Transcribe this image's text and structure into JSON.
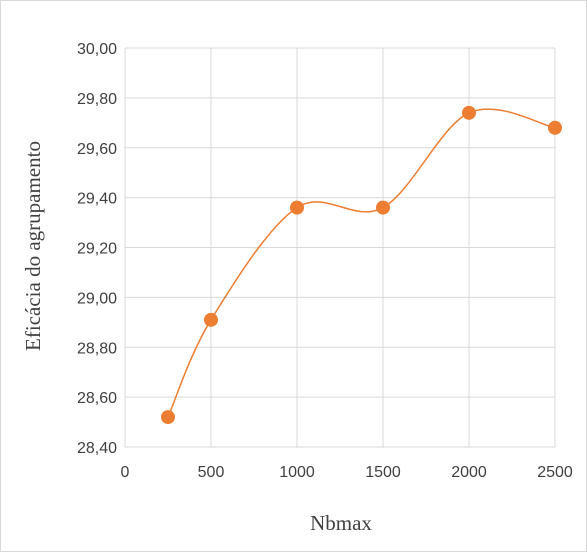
{
  "chart_data": {
    "type": "scatter",
    "title": "",
    "xlabel": "Nbmax",
    "ylabel": "Eficácia do agrupamento",
    "xlim": [
      0,
      2500
    ],
    "ylim": [
      28.4,
      30.0
    ],
    "x_ticks": [
      0,
      500,
      1000,
      1500,
      2000,
      2500
    ],
    "x_tick_labels": [
      "0",
      "500",
      "1000",
      "1500",
      "2000",
      "2500"
    ],
    "y_ticks": [
      28.4,
      28.6,
      28.8,
      29.0,
      29.2,
      29.4,
      29.6,
      29.8,
      30.0
    ],
    "y_tick_labels": [
      "28,40",
      "28,60",
      "28,80",
      "29,00",
      "29,20",
      "29,40",
      "29,60",
      "29,80",
      "30,00"
    ],
    "grid": true,
    "legend": "none",
    "line_style": "smooth",
    "series": [
      {
        "color": "#ED7D31",
        "x": [
          250,
          500,
          1000,
          1500,
          2000,
          2500
        ],
        "y": [
          28.52,
          28.91,
          29.36,
          29.36,
          29.74,
          29.68
        ]
      }
    ]
  }
}
